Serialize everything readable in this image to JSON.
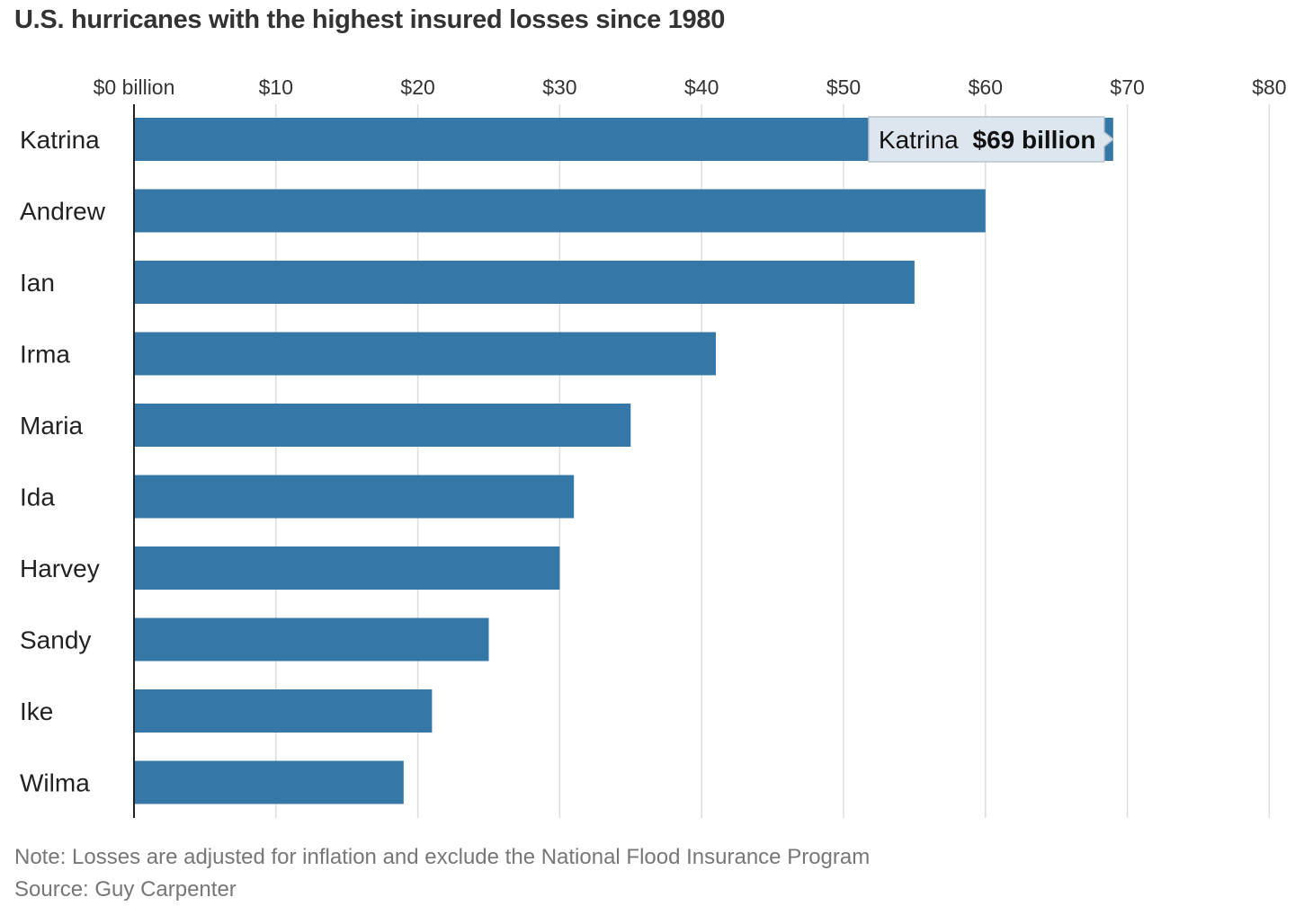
{
  "title": "U.S. hurricanes with the highest insured losses since 1980",
  "note": "Note: Losses are adjusted for inflation and exclude the National Flood Insurance Program",
  "source": "Source: Guy Carpenter",
  "tooltip": {
    "category": "Katrina",
    "name": "Katrina",
    "value_text": "$69 billion"
  },
  "colors": {
    "bar": "#3578a8",
    "grid": "#dddddd",
    "axis": "#222222",
    "tooltip_bg": "#dde6ee",
    "tooltip_border": "#b9c3cc"
  },
  "chart_data": {
    "type": "bar",
    "orientation": "horizontal",
    "title": "U.S. hurricanes with the highest insured losses since 1980",
    "categories": [
      "Katrina",
      "Andrew",
      "Ian",
      "Irma",
      "Maria",
      "Ida",
      "Harvey",
      "Sandy",
      "Ike",
      "Wilma"
    ],
    "values": [
      69,
      60,
      55,
      41,
      35,
      31,
      30,
      25,
      21,
      19
    ],
    "xlim": [
      0,
      80
    ],
    "xticks": [
      0,
      10,
      20,
      30,
      40,
      50,
      60,
      70,
      80
    ],
    "xtick_labels": [
      "$0 billion",
      "$10",
      "$20",
      "$30",
      "$40",
      "$50",
      "$60",
      "$70",
      "$80"
    ],
    "xaxis_position": "top",
    "grid": true
  }
}
